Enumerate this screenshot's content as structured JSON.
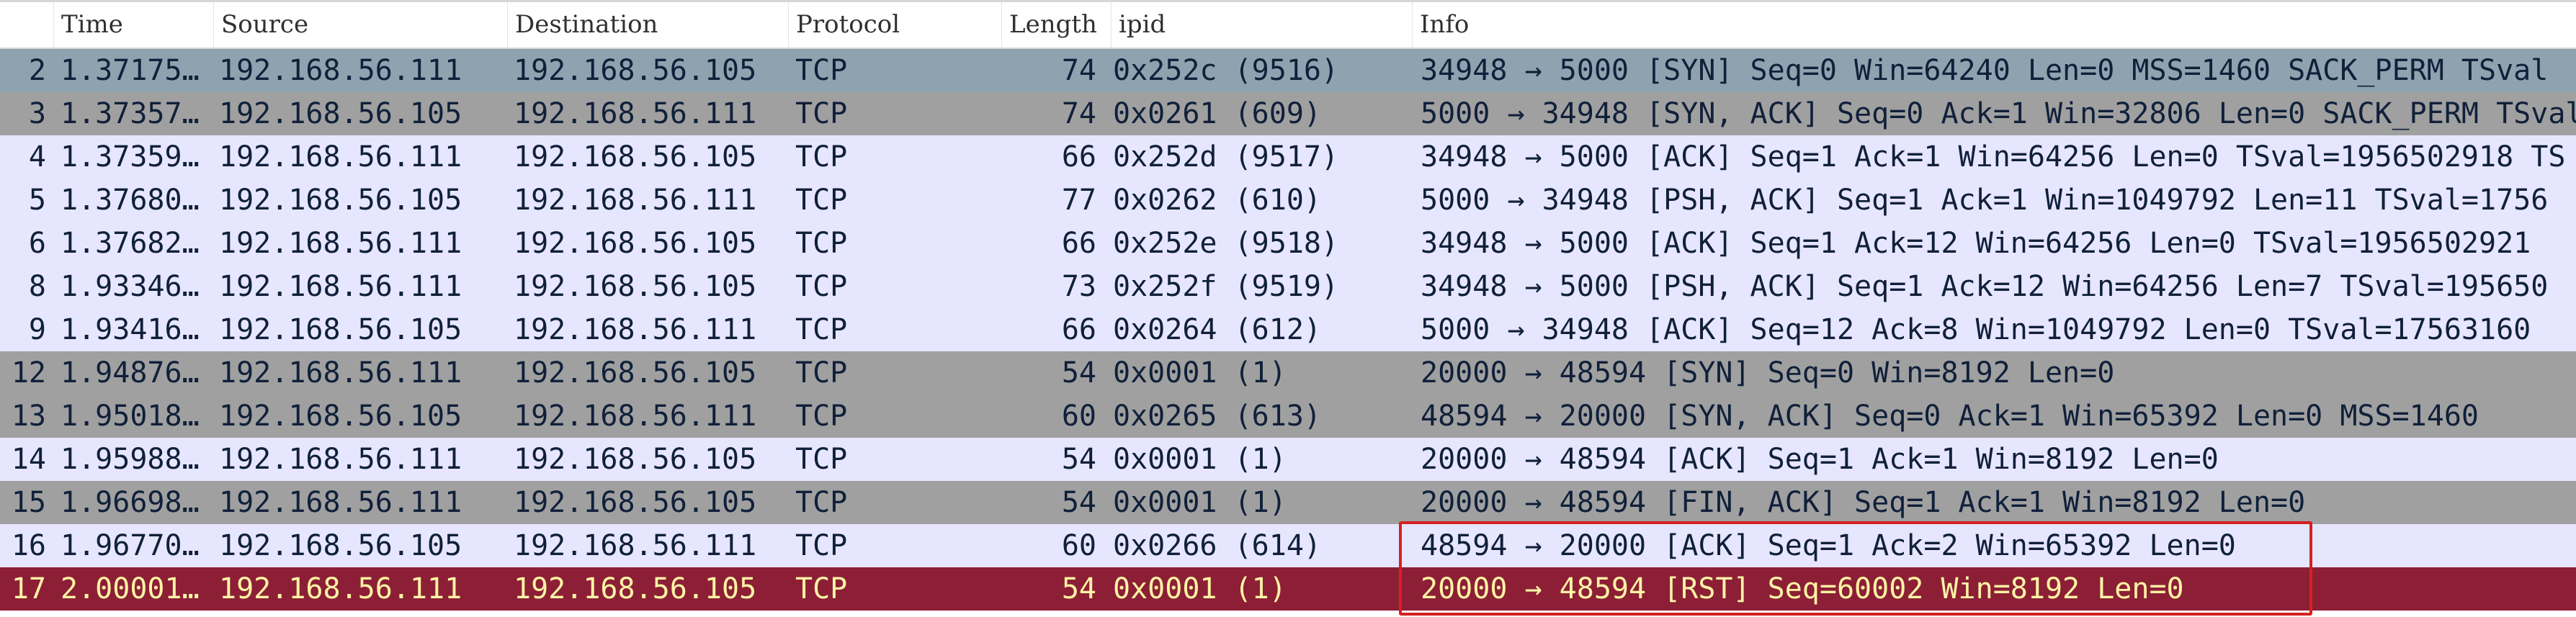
{
  "columns": {
    "no": "",
    "time": "Time",
    "source": "Source",
    "destination": "Destination",
    "protocol": "Protocol",
    "length": "Length",
    "ipid": "ipid",
    "info": "Info"
  },
  "row_colors": {
    "syn": {
      "bg": "#8fa2b0",
      "fg": "#10203a"
    },
    "grey": {
      "bg": "#a0a0a0",
      "fg": "#10203a"
    },
    "tcp": {
      "bg": "#e7e6ff",
      "fg": "#10203a"
    },
    "rst": {
      "bg": "#8c1f36",
      "fg": "#fff3a5"
    }
  },
  "rows": [
    {
      "no": "2",
      "time": "1.37175…",
      "src": "192.168.56.111",
      "dst": "192.168.56.105",
      "proto": "TCP",
      "len": "74",
      "ipid": "0x252c (9516)",
      "info": "34948 → 5000 [SYN] Seq=0 Win=64240 Len=0 MSS=1460 SACK_PERM TSval",
      "color": "syn"
    },
    {
      "no": "3",
      "time": "1.37357…",
      "src": "192.168.56.105",
      "dst": "192.168.56.111",
      "proto": "TCP",
      "len": "74",
      "ipid": "0x0261 (609)",
      "info": "5000 → 34948 [SYN, ACK] Seq=0 Ack=1 Win=32806 Len=0 SACK_PERM TSval=",
      "color": "grey"
    },
    {
      "no": "4",
      "time": "1.37359…",
      "src": "192.168.56.111",
      "dst": "192.168.56.105",
      "proto": "TCP",
      "len": "66",
      "ipid": "0x252d (9517)",
      "info": "34948 → 5000 [ACK] Seq=1 Ack=1 Win=64256 Len=0 TSval=1956502918 TS",
      "color": "tcp"
    },
    {
      "no": "5",
      "time": "1.37680…",
      "src": "192.168.56.105",
      "dst": "192.168.56.111",
      "proto": "TCP",
      "len": "77",
      "ipid": "0x0262 (610)",
      "info": "5000 → 34948 [PSH, ACK] Seq=1 Ack=1 Win=1049792 Len=11 TSval=1756",
      "color": "tcp"
    },
    {
      "no": "6",
      "time": "1.37682…",
      "src": "192.168.56.111",
      "dst": "192.168.56.105",
      "proto": "TCP",
      "len": "66",
      "ipid": "0x252e (9518)",
      "info": "34948 → 5000 [ACK] Seq=1 Ack=12 Win=64256 Len=0 TSval=1956502921",
      "color": "tcp"
    },
    {
      "no": "8",
      "time": "1.93346…",
      "src": "192.168.56.111",
      "dst": "192.168.56.105",
      "proto": "TCP",
      "len": "73",
      "ipid": "0x252f (9519)",
      "info": "34948 → 5000 [PSH, ACK] Seq=1 Ack=12 Win=64256 Len=7 TSval=195650",
      "color": "tcp"
    },
    {
      "no": "9",
      "time": "1.93416…",
      "src": "192.168.56.105",
      "dst": "192.168.56.111",
      "proto": "TCP",
      "len": "66",
      "ipid": "0x0264 (612)",
      "info": "5000 → 34948 [ACK] Seq=12 Ack=8 Win=1049792 Len=0 TSval=17563160",
      "color": "tcp"
    },
    {
      "no": "12",
      "time": "1.94876…",
      "src": "192.168.56.111",
      "dst": "192.168.56.105",
      "proto": "TCP",
      "len": "54",
      "ipid": "0x0001 (1)",
      "info": "20000 → 48594 [SYN] Seq=0 Win=8192 Len=0",
      "color": "grey"
    },
    {
      "no": "13",
      "time": "1.95018…",
      "src": "192.168.56.105",
      "dst": "192.168.56.111",
      "proto": "TCP",
      "len": "60",
      "ipid": "0x0265 (613)",
      "info": "48594 → 20000 [SYN, ACK] Seq=0 Ack=1 Win=65392 Len=0 MSS=1460",
      "color": "grey"
    },
    {
      "no": "14",
      "time": "1.95988…",
      "src": "192.168.56.111",
      "dst": "192.168.56.105",
      "proto": "TCP",
      "len": "54",
      "ipid": "0x0001 (1)",
      "info": "20000 → 48594 [ACK] Seq=1 Ack=1 Win=8192 Len=0",
      "color": "tcp"
    },
    {
      "no": "15",
      "time": "1.96698…",
      "src": "192.168.56.111",
      "dst": "192.168.56.105",
      "proto": "TCP",
      "len": "54",
      "ipid": "0x0001 (1)",
      "info": "20000 → 48594 [FIN, ACK] Seq=1 Ack=1 Win=8192 Len=0",
      "color": "grey"
    },
    {
      "no": "16",
      "time": "1.96770…",
      "src": "192.168.56.105",
      "dst": "192.168.56.111",
      "proto": "TCP",
      "len": "60",
      "ipid": "0x0266 (614)",
      "info": "48594 → 20000 [ACK] Seq=1 Ack=2 Win=65392 Len=0",
      "color": "tcp"
    },
    {
      "no": "17",
      "time": "2.00001…",
      "src": "192.168.56.111",
      "dst": "192.168.56.105",
      "proto": "TCP",
      "len": "54",
      "ipid": "0x0001 (1)",
      "info": "20000 → 48594 [RST] Seq=60002 Win=8192 Len=0",
      "color": "rst"
    }
  ]
}
